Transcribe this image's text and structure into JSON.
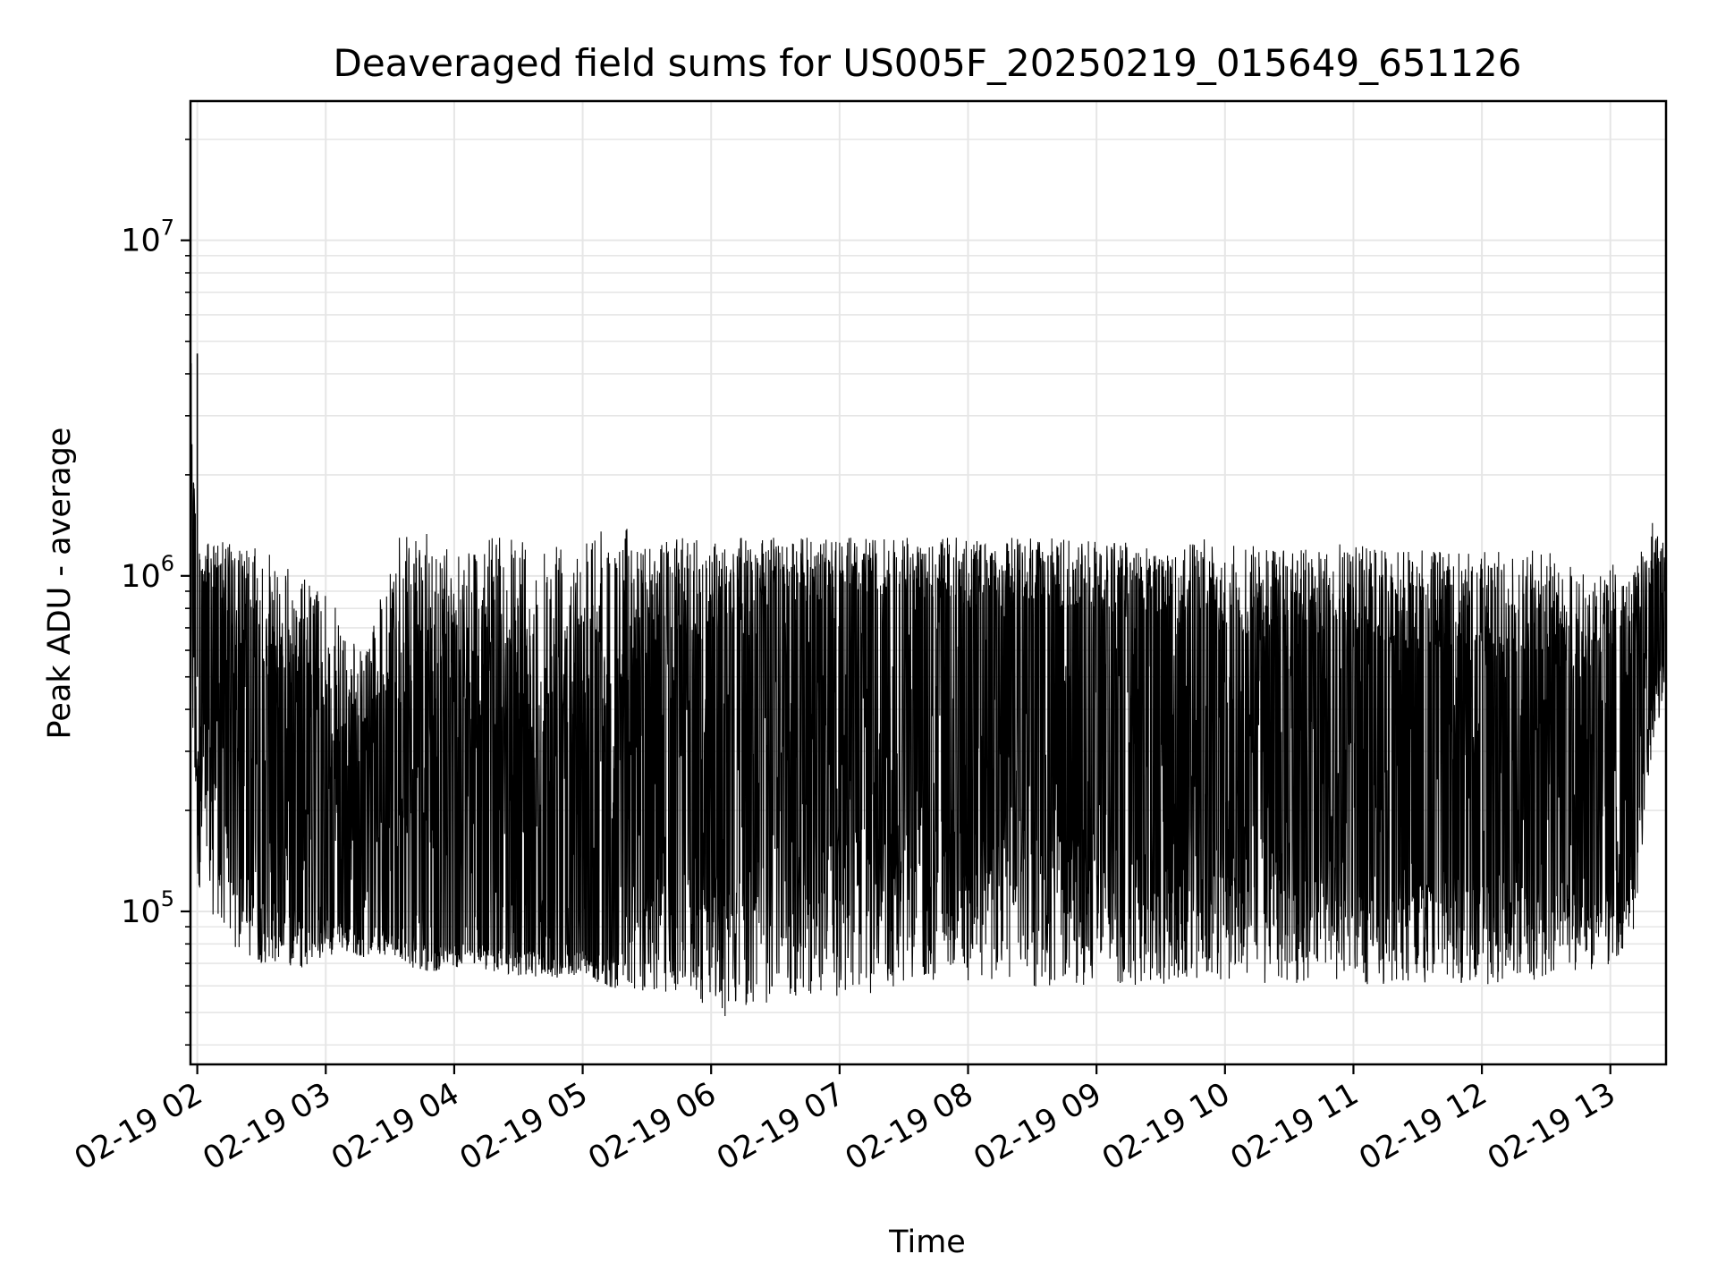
{
  "chart_data": {
    "type": "line",
    "title": "Deaveraged field sums for US005F_20250219_015649_651126",
    "xlabel": "Time",
    "ylabel": "Peak ADU - average",
    "yscale": "log",
    "ylim": [
      35000,
      26000000
    ],
    "xlim": [
      "02-19 01:56:49",
      "02-19 13:26:00"
    ],
    "grid": true,
    "line_color": "#000000",
    "grid_color": "#e6e6e6",
    "x_ticks": [
      "02-19 02",
      "02-19 03",
      "02-19 04",
      "02-19 05",
      "02-19 06",
      "02-19 07",
      "02-19 08",
      "02-19 09",
      "02-19 10",
      "02-19 11",
      "02-19 12",
      "02-19 13"
    ],
    "y_ticks": [
      {
        "base": "10",
        "exp": "5",
        "value": 100000
      },
      {
        "base": "10",
        "exp": "6",
        "value": 1000000
      },
      {
        "base": "10",
        "exp": "7",
        "value": 10000000
      }
    ],
    "series": [
      {
        "x": [
          "02-19 01:57",
          "02-19 02:00",
          "02-19 02:10",
          "02-19 02:20",
          "02-19 02:30",
          "02-19 02:40",
          "02-19 02:50",
          "02-19 03:00",
          "02-19 03:10",
          "02-19 03:20",
          "02-19 03:30",
          "02-19 03:40",
          "02-19 03:50",
          "02-19 04:00",
          "02-19 04:10",
          "02-19 04:20",
          "02-19 04:30",
          "02-19 04:40",
          "02-19 04:50",
          "02-19 05:00",
          "02-19 05:10",
          "02-19 05:20",
          "02-19 05:30",
          "02-19 05:40",
          "02-19 05:50",
          "02-19 06:00",
          "02-19 06:10",
          "02-19 06:20",
          "02-19 06:30",
          "02-19 06:40",
          "02-19 06:50",
          "02-19 07:00",
          "02-19 07:10",
          "02-19 07:20",
          "02-19 07:30",
          "02-19 07:40",
          "02-19 07:50",
          "02-19 08:00",
          "02-19 08:10",
          "02-19 08:20",
          "02-19 08:30",
          "02-19 08:40",
          "02-19 08:50",
          "02-19 09:00",
          "02-19 09:10",
          "02-19 09:20",
          "02-19 09:30",
          "02-19 09:40",
          "02-19 09:50",
          "02-19 10:00",
          "02-19 10:10",
          "02-19 10:20",
          "02-19 10:30",
          "02-19 10:40",
          "02-19 10:50",
          "02-19 11:00",
          "02-19 11:10",
          "02-19 11:20",
          "02-19 11:30",
          "02-19 11:40",
          "02-19 11:50",
          "02-19 12:00",
          "02-19 12:10",
          "02-19 12:20",
          "02-19 12:30",
          "02-19 12:40",
          "02-19 12:50",
          "02-19 13:00",
          "02-19 13:10",
          "02-19 13:20",
          "02-19 13:26"
        ],
        "low": [
          500000,
          120000,
          90000,
          75000,
          70000,
          68000,
          68000,
          72000,
          75000,
          72000,
          75000,
          68000,
          66000,
          68000,
          68000,
          66000,
          64000,
          64000,
          62000,
          65000,
          60000,
          58000,
          58000,
          56000,
          55000,
          50000,
          48000,
          50000,
          52000,
          55000,
          56000,
          55000,
          56000,
          58000,
          60000,
          60000,
          60000,
          62000,
          62000,
          60000,
          58000,
          60000,
          60000,
          60000,
          60000,
          60000,
          60000,
          62000,
          62000,
          62000,
          62000,
          60000,
          60000,
          62000,
          62000,
          62000,
          60000,
          60000,
          60000,
          62000,
          60000,
          60000,
          62000,
          62000,
          62000,
          65000,
          65000,
          70000,
          80000,
          300000,
          500000
        ],
        "high": [
          4600000,
          1200000,
          1300000,
          1250000,
          1200000,
          1100000,
          1000000,
          900000,
          700000,
          600000,
          1350000,
          1300000,
          1350000,
          1350000,
          1300000,
          1300000,
          1300000,
          1300000,
          1350000,
          1350000,
          1400000,
          1400000,
          1350000,
          1300000,
          1300000,
          1300000,
          1300000,
          1300000,
          1300000,
          1300000,
          1300000,
          1300000,
          1300000,
          1300000,
          1300000,
          1300000,
          1300000,
          1300000,
          1300000,
          1300000,
          1300000,
          1300000,
          1300000,
          1300000,
          1300000,
          1250000,
          1250000,
          1250000,
          1300000,
          1250000,
          1250000,
          1250000,
          1200000,
          1200000,
          1250000,
          1250000,
          1200000,
          1200000,
          1200000,
          1200000,
          1200000,
          1200000,
          1200000,
          1200000,
          1200000,
          1150000,
          1100000,
          1100000,
          1000000,
          1500000,
          1200000
        ],
        "mid": [
          700000,
          700000,
          600000,
          250000,
          180000,
          150000,
          140000,
          130000,
          110000,
          100000,
          100000,
          95000,
          95000,
          95000,
          95000,
          90000,
          90000,
          90000,
          88000,
          90000,
          90000,
          100000,
          250000,
          300000,
          300000,
          350000,
          400000,
          450000,
          500000,
          500000,
          550000,
          550000,
          550000,
          550000,
          550000,
          550000,
          520000,
          500000,
          500000,
          500000,
          520000,
          500000,
          500000,
          480000,
          450000,
          420000,
          400000,
          400000,
          380000,
          380000,
          350000,
          350000,
          350000,
          330000,
          330000,
          320000,
          300000,
          300000,
          300000,
          280000,
          280000,
          280000,
          270000,
          270000,
          260000,
          250000,
          250000,
          250000,
          250000,
          700000,
          800000
        ]
      }
    ]
  }
}
